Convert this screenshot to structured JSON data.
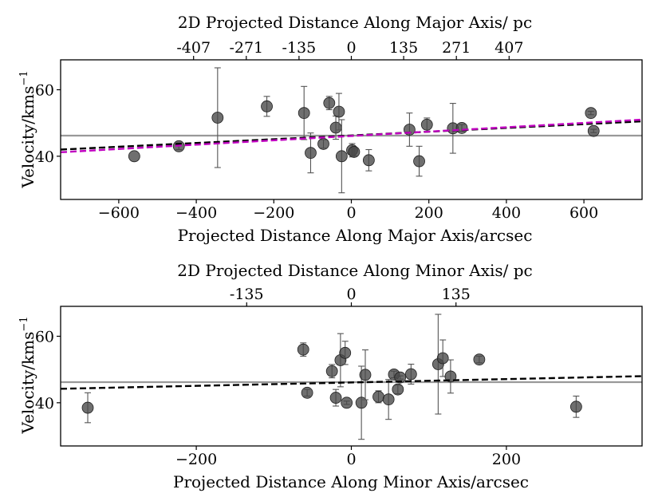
{
  "chart_data": [
    {
      "type": "scatter",
      "id": "major",
      "top_axis_title": "2D Projected Distance Along Major Axis/ pc",
      "top_ticks": [
        {
          "x": -407,
          "label": "-407"
        },
        {
          "x": -271,
          "label": "-271"
        },
        {
          "x": -135,
          "label": "-135"
        },
        {
          "x": 0,
          "label": "0"
        },
        {
          "x": 135,
          "label": "135"
        },
        {
          "x": 271,
          "label": "271"
        },
        {
          "x": 407,
          "label": "407"
        }
      ],
      "xlabel": "Projected Distance Along Major Axis/arcsec",
      "ylabel": "Velocity/kms",
      "ylabel_sup": "−1",
      "xlim": [
        -750,
        750
      ],
      "ylim": [
        27,
        69
      ],
      "xticks": [
        -600,
        -400,
        -200,
        0,
        200,
        400,
        600
      ],
      "xtick_labels": [
        "−600",
        "−400",
        "−200",
        "0",
        "200",
        "400",
        "600"
      ],
      "yticks": [
        40,
        60
      ],
      "ytick_labels": [
        "40",
        "60"
      ],
      "mean_velocity": 46.2,
      "fit_lines": [
        {
          "name": "fit-black",
          "color": "#000000",
          "y_at_xmin": 42.0,
          "y_at_xmax": 50.5
        },
        {
          "name": "fit-magenta",
          "color": "#c000c0",
          "y_at_xmin": 41.2,
          "y_at_xmax": 51.0
        }
      ],
      "points": [
        {
          "x": -560,
          "y": 40.0,
          "err": 0
        },
        {
          "x": -445,
          "y": 43.0,
          "err": 1.0
        },
        {
          "x": -345,
          "y": 51.6,
          "err": 15.0
        },
        {
          "x": -218,
          "y": 55.0,
          "err": 3.0
        },
        {
          "x": -122,
          "y": 53.0,
          "err": 8.0
        },
        {
          "x": -105,
          "y": 41.0,
          "err": 6.0
        },
        {
          "x": -72,
          "y": 43.7,
          "err": 1.3
        },
        {
          "x": -57,
          "y": 56.0,
          "err": 2.0
        },
        {
          "x": -40,
          "y": 48.6,
          "err": 3.5
        },
        {
          "x": -32,
          "y": 53.4,
          "err": 5.5
        },
        {
          "x": -25,
          "y": 40.0,
          "err": 11.0
        },
        {
          "x": 2,
          "y": 41.8,
          "err": 2.0
        },
        {
          "x": 7,
          "y": 41.3,
          "err": 1.2
        },
        {
          "x": 45,
          "y": 38.8,
          "err": 3.2
        },
        {
          "x": 150,
          "y": 48.0,
          "err": 5.0
        },
        {
          "x": 175,
          "y": 38.5,
          "err": 4.5
        },
        {
          "x": 195,
          "y": 49.5,
          "err": 2.0
        },
        {
          "x": 262,
          "y": 48.4,
          "err": 7.5
        },
        {
          "x": 285,
          "y": 48.5,
          "err": 1.0
        },
        {
          "x": 618,
          "y": 53.0,
          "err": 0.5
        },
        {
          "x": 625,
          "y": 47.6,
          "err": 0.5
        }
      ]
    },
    {
      "type": "scatter",
      "id": "minor",
      "top_axis_title": "2D Projected Distance Along Minor Axis/ pc",
      "top_ticks": [
        {
          "x": -135,
          "label": "-135"
        },
        {
          "x": 0,
          "label": "0"
        },
        {
          "x": 135,
          "label": "135"
        }
      ],
      "xlabel": "Projected Distance Along Minor Axis/arcsec",
      "ylabel": "Velocity/kms",
      "ylabel_sup": "−1",
      "xlim": [
        -375,
        375
      ],
      "ylim": [
        27,
        69
      ],
      "xticks": [
        -200,
        0,
        200
      ],
      "xtick_labels": [
        "−200",
        "0",
        "200"
      ],
      "yticks": [
        40,
        60
      ],
      "ytick_labels": [
        "40",
        "60"
      ],
      "mean_velocity": 46.2,
      "fit_lines": [
        {
          "name": "fit-black",
          "color": "#000000",
          "y_at_xmin": 44.2,
          "y_at_xmax": 48.0
        }
      ],
      "points": [
        {
          "x": -340,
          "y": 38.5,
          "err": 4.5
        },
        {
          "x": -62,
          "y": 56.0,
          "err": 2.0
        },
        {
          "x": -57,
          "y": 43.0,
          "err": 1.0
        },
        {
          "x": -25,
          "y": 49.5,
          "err": 2.0
        },
        {
          "x": -20,
          "y": 41.5,
          "err": 2.5
        },
        {
          "x": -14,
          "y": 52.8,
          "err": 8.0
        },
        {
          "x": -8,
          "y": 55.0,
          "err": 3.5
        },
        {
          "x": -6,
          "y": 40.0,
          "err": 0.5
        },
        {
          "x": 13,
          "y": 40.0,
          "err": 11.0
        },
        {
          "x": 18,
          "y": 48.4,
          "err": 7.5
        },
        {
          "x": 35,
          "y": 41.8,
          "err": 1.8
        },
        {
          "x": 48,
          "y": 41.0,
          "err": 6.0
        },
        {
          "x": 55,
          "y": 48.5,
          "err": 1.0
        },
        {
          "x": 60,
          "y": 44.0,
          "err": 1.3
        },
        {
          "x": 63,
          "y": 47.6,
          "err": 0.5
        },
        {
          "x": 77,
          "y": 48.6,
          "err": 3.0
        },
        {
          "x": 112,
          "y": 51.6,
          "err": 15.0
        },
        {
          "x": 118,
          "y": 53.4,
          "err": 5.5
        },
        {
          "x": 128,
          "y": 47.9,
          "err": 5.0
        },
        {
          "x": 165,
          "y": 53.0,
          "err": 1.0
        },
        {
          "x": 290,
          "y": 38.8,
          "err": 3.2
        }
      ]
    }
  ]
}
